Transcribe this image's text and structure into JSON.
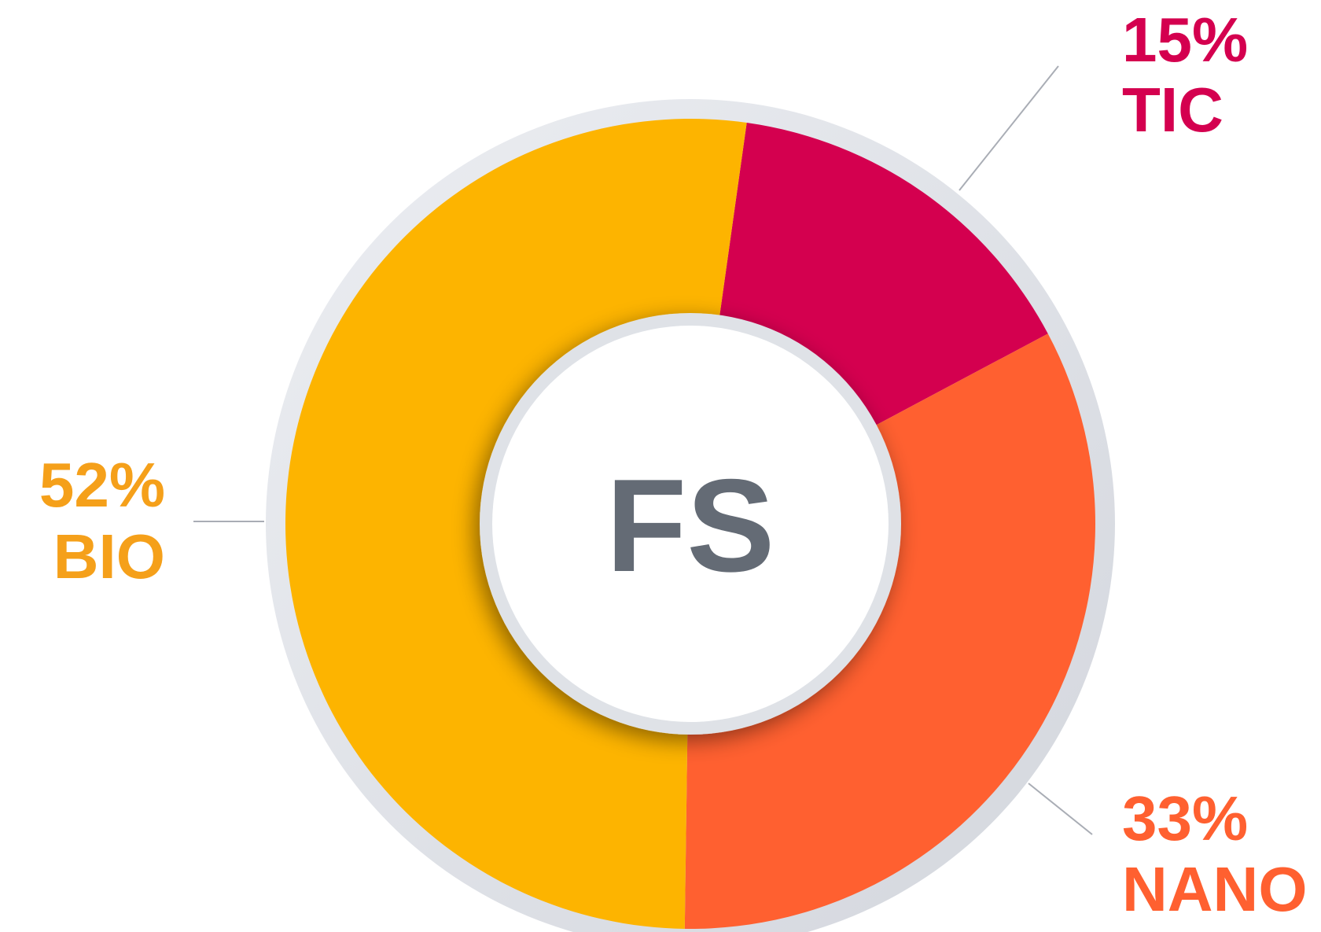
{
  "chart_data": {
    "type": "donut",
    "center_label": "FS",
    "categories": [
      "TIC",
      "NANO",
      "BIO"
    ],
    "values": [
      15,
      33,
      52
    ],
    "value_labels": [
      "15%",
      "33%",
      "52%"
    ],
    "colors": [
      "#d4004f",
      "#ff6030",
      "#fdb400"
    ]
  }
}
